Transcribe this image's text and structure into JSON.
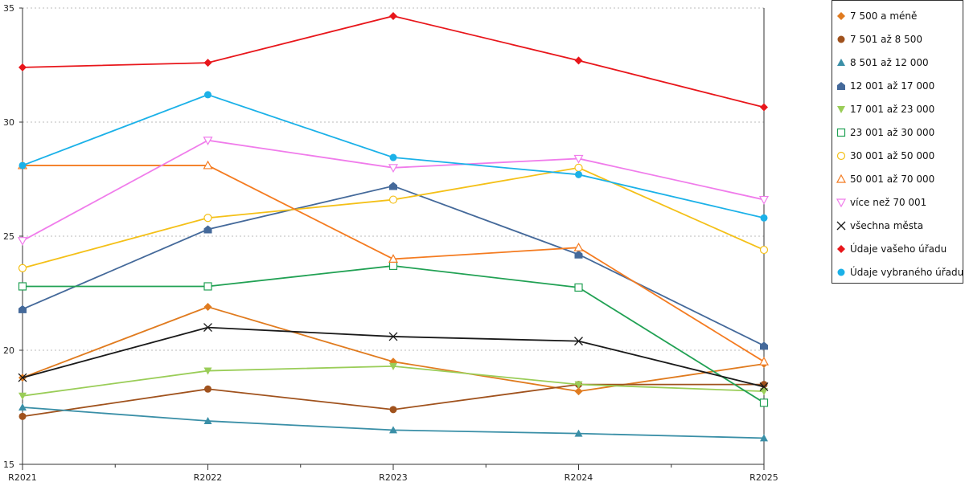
{
  "chart_data": {
    "type": "line",
    "title": "",
    "xlabel": "",
    "ylabel": "",
    "categories": [
      "R2021",
      "R2022",
      "R2023",
      "R2024",
      "R2025"
    ],
    "ylim": [
      15,
      35
    ],
    "yticks": [
      15,
      20,
      25,
      30,
      35
    ],
    "grid": "horizontal dashed",
    "legend_position": "right",
    "series": [
      {
        "name": "7 500 a méně",
        "color": "#E07B1F",
        "marker": "diamond",
        "values": [
          18.8,
          21.9,
          19.5,
          18.2,
          19.4
        ]
      },
      {
        "name": "7 501 až 8 500",
        "color": "#A0521D",
        "marker": "circle-filled",
        "values": [
          17.1,
          18.3,
          17.4,
          18.5,
          18.5
        ]
      },
      {
        "name": "8 501 až 12 000",
        "color": "#3A8FA7",
        "marker": "triangle-up-filled",
        "values": [
          17.5,
          16.9,
          16.5,
          16.35,
          16.15
        ]
      },
      {
        "name": "12 001 až 17 000",
        "color": "#44699A",
        "marker": "house-filled",
        "values": [
          21.8,
          25.3,
          27.2,
          24.2,
          20.2
        ]
      },
      {
        "name": "17 001 až 23 000",
        "color": "#9ACD58",
        "marker": "triangle-down-filled",
        "values": [
          18.0,
          19.1,
          19.3,
          18.5,
          18.2
        ]
      },
      {
        "name": "23 001 až 30 000",
        "color": "#21A154",
        "marker": "square-open",
        "values": [
          22.8,
          22.8,
          23.7,
          22.75,
          17.7
        ]
      },
      {
        "name": "30 001 až 50 000",
        "color": "#F4C018",
        "marker": "circle-open",
        "values": [
          23.6,
          25.8,
          26.6,
          28.0,
          24.4
        ]
      },
      {
        "name": "50 001 až 70 000",
        "color": "#F47B20",
        "marker": "triangle-up-open",
        "values": [
          28.1,
          28.1,
          24.0,
          24.5,
          19.5
        ]
      },
      {
        "name": "více než 70 001",
        "color": "#F07CEB",
        "marker": "triangle-down-open",
        "values": [
          24.8,
          29.2,
          28.0,
          28.4,
          26.6
        ]
      },
      {
        "name": "všechna města",
        "color": "#1A1A1A",
        "marker": "x",
        "values": [
          18.8,
          21.0,
          20.6,
          20.4,
          18.4
        ]
      },
      {
        "name": "Údaje vašeho úřadu",
        "color": "#E8161B",
        "marker": "diamond",
        "values": [
          32.4,
          32.6,
          34.65,
          32.7,
          30.65
        ]
      },
      {
        "name": "Údaje vybraného úřadu",
        "color": "#1BB1E8",
        "marker": "circle-filled",
        "values": [
          28.1,
          31.2,
          28.45,
          27.7,
          25.8
        ]
      }
    ]
  }
}
